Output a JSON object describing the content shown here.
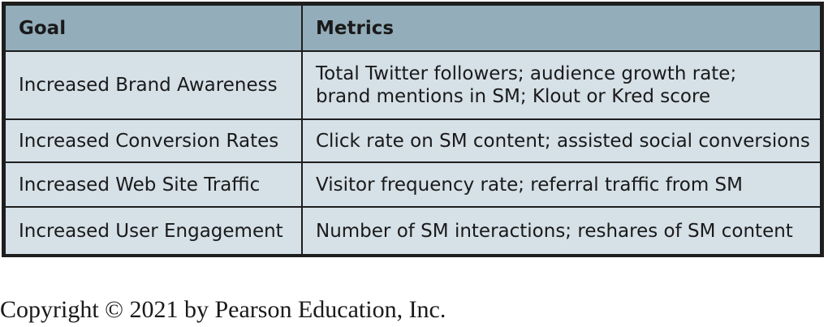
{
  "table": {
    "headers": {
      "goal": "Goal",
      "metrics": "Metrics"
    },
    "rows": [
      {
        "goal": "Increased Brand Awareness",
        "metrics_line1": "Total Twitter followers; audience growth rate;",
        "metrics_line2": "brand mentions in SM; Klout or Kred score"
      },
      {
        "goal": "Increased Conversion Rates",
        "metrics": "Click rate on SM content; assisted social conversions"
      },
      {
        "goal": "Increased Web Site Traffic",
        "metrics": "Visitor frequency rate; referral traffic from SM"
      },
      {
        "goal": "Increased User Engagement",
        "metrics": "Number of SM interactions; reshares of SM content"
      }
    ]
  },
  "footer": {
    "copyright": "Copyright © 2021 by Pearson Education, Inc."
  }
}
